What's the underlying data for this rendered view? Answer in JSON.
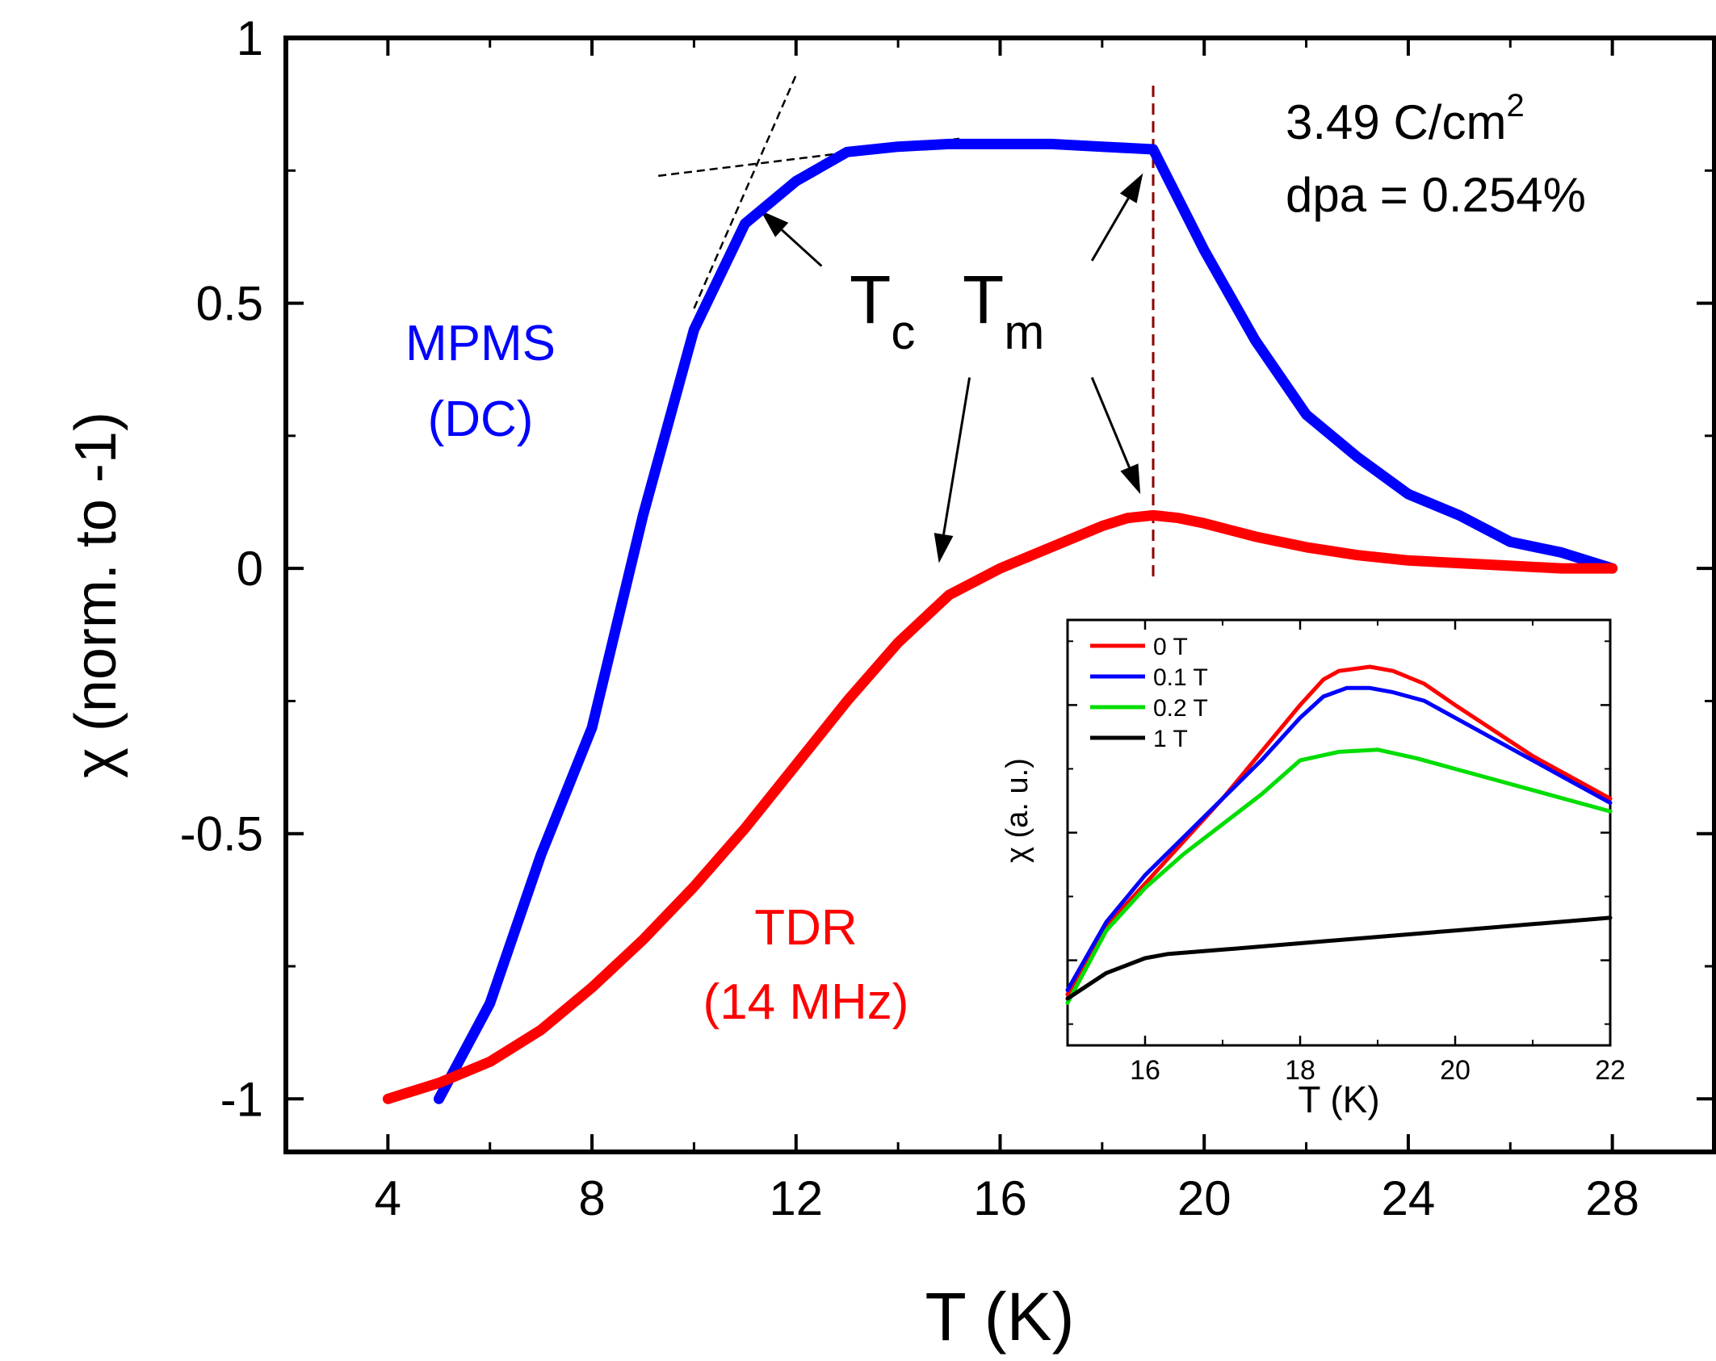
{
  "chart_data": [
    {
      "type": "line",
      "title": "",
      "xlabel": "T (K)",
      "ylabel": "χ (norm. to -1)",
      "xlim": [
        2,
        30
      ],
      "ylim": [
        -1.1,
        1.0
      ],
      "x_ticks": [
        4,
        8,
        12,
        16,
        20,
        24,
        28
      ],
      "x_tick_labels": [
        "4",
        "8",
        "12",
        "16",
        "20",
        "24",
        "28"
      ],
      "y_ticks": [
        -1,
        -0.5,
        0,
        0.5,
        1
      ],
      "y_tick_labels": [
        "-1",
        "-0.5",
        "0",
        "0.5",
        "1"
      ],
      "grid": false,
      "series": [
        {
          "name": "MPMS (DC)",
          "color": "#0000ff",
          "x": [
            5,
            6,
            7,
            8,
            9,
            10,
            11,
            12,
            13,
            14,
            15,
            16,
            17,
            18,
            19,
            20,
            21,
            22,
            23,
            24,
            25,
            26,
            27,
            28
          ],
          "values": [
            -1.0,
            -0.82,
            -0.54,
            -0.3,
            0.1,
            0.45,
            0.65,
            0.73,
            0.785,
            0.795,
            0.8,
            0.8,
            0.8,
            0.795,
            0.79,
            0.6,
            0.43,
            0.29,
            0.21,
            0.14,
            0.1,
            0.05,
            0.03,
            0.0
          ]
        },
        {
          "name": "TDR (14 MHz)",
          "color": "#ff0000",
          "x": [
            4,
            5,
            6,
            7,
            8,
            9,
            10,
            11,
            12,
            13,
            14,
            15,
            16,
            17,
            18,
            18.5,
            19,
            19.5,
            20,
            21,
            22,
            23,
            24,
            25,
            26,
            27,
            28
          ],
          "values": [
            -1.0,
            -0.97,
            -0.93,
            -0.87,
            -0.79,
            -0.7,
            -0.6,
            -0.49,
            -0.37,
            -0.25,
            -0.14,
            -0.05,
            0.0,
            0.04,
            0.08,
            0.095,
            0.1,
            0.095,
            0.085,
            0.06,
            0.04,
            0.025,
            0.015,
            0.01,
            0.005,
            0.0,
            0.0
          ]
        }
      ],
      "tangents": [
        {
          "x": [
            9.3,
            15.2
          ],
          "values": [
            0.74,
            0.81
          ]
        },
        {
          "x": [
            10.0,
            12.0
          ],
          "values": [
            0.49,
            0.93
          ]
        }
      ],
      "reference_line": {
        "x": 19,
        "color": "#8b0000"
      },
      "annotations": {
        "dose": "3.49 C/cm",
        "dose_sup": "2",
        "dpa": "dpa = 0.254%",
        "tc_main": "T",
        "tc_sub": "c",
        "tm_main": "T",
        "tm_sub": "m",
        "mpms_line1": "MPMS",
        "mpms_line2": "(DC)",
        "tdr_line1": "TDR",
        "tdr_line2": "(14 MHz)"
      },
      "arrows": [
        {
          "label": "Tc-MPMS",
          "from": [
            12.5,
            0.57
          ],
          "to": [
            11.3,
            0.675
          ]
        },
        {
          "label": "Tc-TDR",
          "from": [
            15.4,
            0.36
          ],
          "to": [
            14.8,
            0.01
          ]
        },
        {
          "label": "Tm-MPMS",
          "from": [
            17.8,
            0.58
          ],
          "to": [
            18.8,
            0.745
          ]
        },
        {
          "label": "Tm-TDR",
          "from": [
            17.8,
            0.36
          ],
          "to": [
            18.75,
            0.14
          ]
        }
      ]
    },
    {
      "type": "line",
      "title": "",
      "xlabel": "T (K)",
      "ylabel": "χ (a. u.)",
      "xlim": [
        15,
        22
      ],
      "ylim": [
        0,
        1
      ],
      "x_ticks": [
        16,
        18,
        20,
        22
      ],
      "x_tick_labels": [
        "16",
        "18",
        "20",
        "22"
      ],
      "legend_position": "top-left",
      "series": [
        {
          "name": "0 T",
          "color": "#ff0000",
          "x": [
            15,
            15.5,
            16,
            16.5,
            17,
            17.5,
            18,
            18.3,
            18.5,
            18.7,
            18.9,
            19.2,
            19.6,
            20,
            20.5,
            21,
            21.5,
            22
          ],
          "values": [
            0.12,
            0.28,
            0.38,
            0.48,
            0.58,
            0.69,
            0.8,
            0.86,
            0.88,
            0.885,
            0.89,
            0.88,
            0.85,
            0.8,
            0.74,
            0.68,
            0.63,
            0.58
          ]
        },
        {
          "name": "0.1 T",
          "color": "#0000ff",
          "x": [
            15,
            15.5,
            16,
            16.5,
            17,
            17.5,
            18,
            18.3,
            18.6,
            18.9,
            19.2,
            19.6,
            20,
            20.5,
            21,
            21.5,
            22
          ],
          "values": [
            0.13,
            0.29,
            0.4,
            0.49,
            0.58,
            0.67,
            0.77,
            0.82,
            0.84,
            0.84,
            0.83,
            0.81,
            0.77,
            0.72,
            0.67,
            0.62,
            0.57
          ]
        },
        {
          "name": "0.2 T",
          "color": "#00dd00",
          "x": [
            15,
            15.5,
            16,
            16.5,
            17,
            17.5,
            18,
            18.5,
            19,
            19.5,
            20,
            20.5,
            21,
            21.5,
            22
          ],
          "values": [
            0.1,
            0.27,
            0.37,
            0.45,
            0.52,
            0.59,
            0.67,
            0.69,
            0.695,
            0.675,
            0.65,
            0.625,
            0.6,
            0.575,
            0.55
          ]
        },
        {
          "name": "1 T",
          "color": "#000000",
          "x": [
            15,
            15.5,
            16,
            16.3,
            17,
            18,
            19,
            20,
            21,
            22
          ],
          "values": [
            0.11,
            0.17,
            0.205,
            0.215,
            0.225,
            0.24,
            0.255,
            0.27,
            0.285,
            0.3
          ]
        }
      ]
    }
  ]
}
